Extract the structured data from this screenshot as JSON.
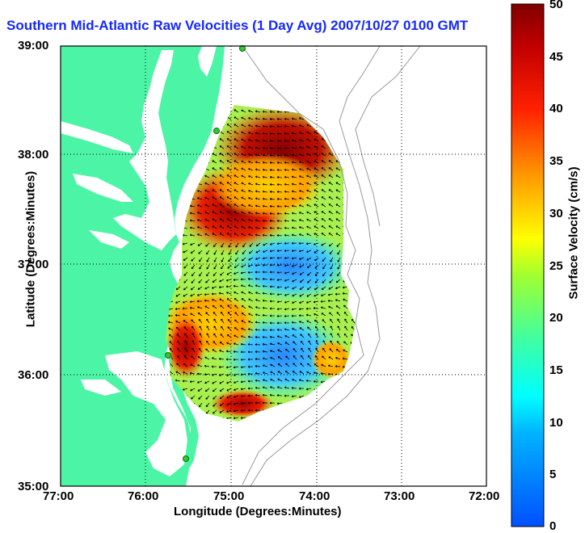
{
  "title": "Southern Mid-Atlantic Raw Velocities (1 Day Avg) 2007/10/27 0100 GMT",
  "map": {
    "xlabel": "Longitude (Degrees:Minutes)",
    "ylabel": "Latitude (Degrees:Minutes)",
    "x_ticks": [
      "77:00",
      "76:00",
      "75:00",
      "74:00",
      "73:00",
      "72:00"
    ],
    "y_ticks": [
      "39:00",
      "38:00",
      "37:00",
      "36:00",
      "35:00"
    ],
    "land_color": "#4cf5a6",
    "station_color": "#32c832"
  },
  "colorbar": {
    "label": "Surface Velocity (cm/s)",
    "ticks": [
      "0",
      "5",
      "10",
      "15",
      "20",
      "25",
      "30",
      "35",
      "40",
      "45",
      "50"
    ],
    "min": 0,
    "max": 50
  }
}
